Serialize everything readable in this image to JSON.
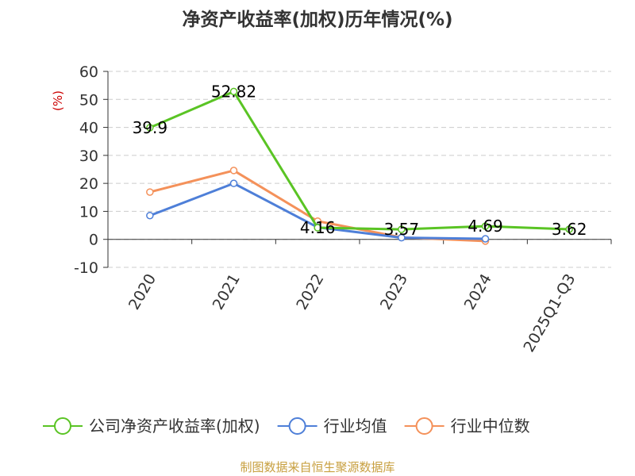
{
  "chart_data": {
    "type": "line",
    "title": "净资产收益率(加权)历年情况(%)",
    "ylabel": "(%)",
    "categories": [
      "2020",
      "2021",
      "2022",
      "2023",
      "2024",
      "2025Q1-Q3"
    ],
    "ylim": [
      -10,
      60
    ],
    "yticks": [
      60,
      50,
      40,
      30,
      20,
      10,
      0,
      -10
    ],
    "grid": true,
    "legend_position": "bottom",
    "series": [
      {
        "name": "公司净资产收益率(加权)",
        "color": "#5ac424",
        "values": [
          39.9,
          52.82,
          4.16,
          3.57,
          4.69,
          3.62
        ],
        "labels": [
          "39.9",
          "52.82",
          "4.16",
          "3.57",
          "4.69",
          "3.62"
        ]
      },
      {
        "name": "行业均值",
        "color": "#4e7fd8",
        "values": [
          8.5,
          20.0,
          4.3,
          0.6,
          0.2,
          null
        ]
      },
      {
        "name": "行业中位数",
        "color": "#f4915a",
        "values": [
          16.9,
          24.6,
          6.5,
          0.7,
          -0.6,
          null
        ]
      }
    ]
  },
  "source": "制图数据来自恒生聚源数据库"
}
